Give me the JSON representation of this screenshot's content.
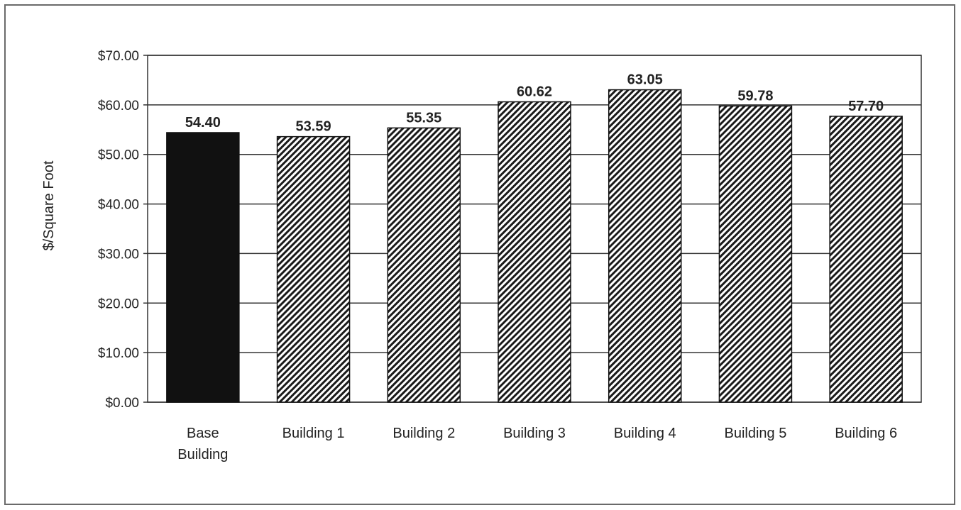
{
  "chart_data": {
    "type": "bar",
    "title": "",
    "xlabel": "",
    "ylabel": "$/Square Foot",
    "categories": [
      [
        "Base",
        "Building"
      ],
      [
        "Building 1"
      ],
      [
        "Building 2"
      ],
      [
        "Building 3"
      ],
      [
        "Building 4"
      ],
      [
        "Building 5"
      ],
      [
        "Building 6"
      ]
    ],
    "values": [
      54.4,
      53.59,
      55.35,
      60.62,
      63.05,
      59.78,
      57.7
    ],
    "data_labels": [
      "54.40",
      "53.59",
      "55.35",
      "60.62",
      "63.05",
      "59.78",
      "57.70"
    ],
    "ylim": [
      0,
      70
    ],
    "yticks": [
      0,
      10,
      20,
      30,
      40,
      50,
      60,
      70
    ],
    "ytick_labels": [
      "$0.00",
      "$10.00",
      "$20.00",
      "$30.00",
      "$40.00",
      "$50.00",
      "$60.00",
      "$70.00"
    ],
    "grid": true,
    "legend": "none",
    "bar_styles": [
      "solid",
      "hatched",
      "hatched",
      "hatched",
      "hatched",
      "hatched",
      "hatched"
    ],
    "colors": {
      "base_bar": "#111111",
      "hatch": "#1a1a1a",
      "gridline": "#333333",
      "frame": "#6a6a6a"
    }
  }
}
